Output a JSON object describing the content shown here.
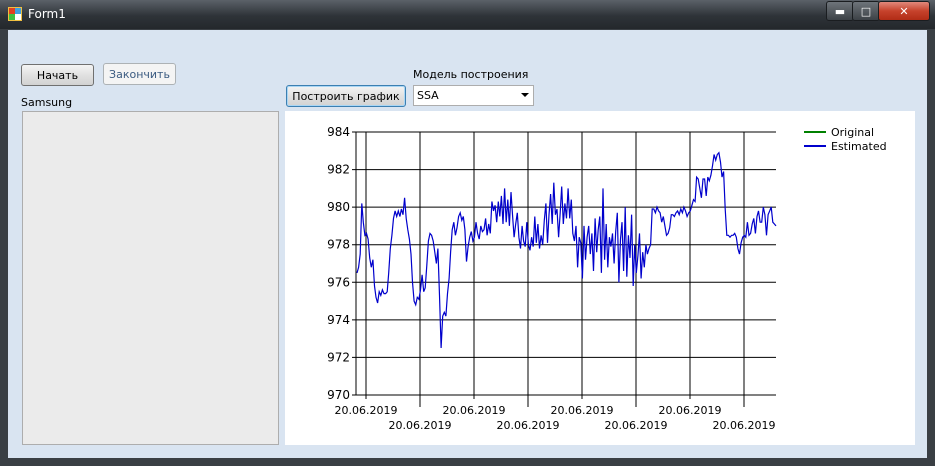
{
  "window": {
    "title": "Form1"
  },
  "controls": {
    "start_button": "Начать",
    "stop_button": "Закончить",
    "list_label": "Samsung",
    "build_button": "Построить график",
    "model_label": "Модель построения",
    "model_value": "SSA"
  },
  "chart_data": {
    "type": "line",
    "title": "",
    "xlabel": "",
    "ylabel": "",
    "ylim": [
      970,
      984
    ],
    "yticks": [
      970,
      972,
      974,
      976,
      978,
      980,
      982,
      984
    ],
    "xtick_labels": [
      "20.06.2019",
      "20.06.2019",
      "20.06.2019",
      "20.06.2019",
      "20.06.2019",
      "20.06.2019",
      "20.06.2019",
      "20.06.2019"
    ],
    "grid": true,
    "legend_position": "top-right",
    "colors": {
      "Original": "#008000",
      "Estimated": "#0000cc"
    },
    "series": [
      {
        "name": "Original",
        "values": []
      },
      {
        "name": "Estimated",
        "values": [
          976.5,
          976.8,
          977.5,
          980.2,
          979.2,
          978.5,
          978.6,
          978.3,
          977.3,
          976.8,
          977.2,
          975.8,
          975.2,
          974.9,
          975.5,
          975.3,
          975.6,
          975.4,
          975.4,
          975.5,
          976.5,
          977.8,
          978.5,
          979.4,
          979.8,
          979.5,
          979.8,
          979.5,
          979.9,
          979.6,
          980.5,
          979.4,
          978.8,
          978.3,
          977.5,
          976.0,
          975.0,
          974.8,
          975.2,
          975.1,
          975.6,
          976.4,
          975.5,
          975.7,
          976.9,
          978.2,
          978.6,
          978.5,
          978.2,
          977.6,
          977.0,
          977.8,
          975.3,
          972.5,
          974.2,
          974.4,
          974.2,
          975.4,
          976.2,
          977.6,
          978.8,
          979.2,
          978.5,
          978.9,
          979.5,
          979.7,
          979.3,
          979.5,
          978.8,
          977.1,
          977.9,
          978.4,
          978.7,
          978.2,
          978.4,
          979.2,
          978.6,
          978.3,
          979.0,
          978.7,
          978.8,
          979.4,
          978.5,
          979.1,
          978.6,
          980.3,
          979.8,
          980.1,
          979.2,
          980.3,
          979.5,
          980.6,
          979.1,
          981.0,
          979.2,
          980.4,
          979.0,
          980.8,
          979.6,
          978.4,
          979.1,
          979.7,
          978.4,
          977.8,
          979.0,
          978.2,
          977.9,
          979.2,
          978.0,
          977.7,
          978.4,
          977.9,
          979.5,
          978.1,
          979.1,
          977.8,
          978.5,
          978.0,
          979.3,
          980.2,
          978.1,
          979.6,
          980.7,
          979.1,
          981.3,
          979.6,
          979.9,
          978.4,
          979.7,
          981.1,
          979.1,
          980.2,
          979.4,
          981.0,
          979.4,
          980.4,
          978.6,
          978.2,
          979.0,
          976.8,
          978.4,
          978.1,
          976.2,
          979.0,
          977.2,
          978.4,
          979.0,
          977.5,
          978.6,
          976.6,
          979.4,
          977.6,
          978.8,
          979.5,
          976.5,
          981.0,
          977.2,
          979.1,
          976.8,
          978.4,
          977.9,
          978.6,
          977.0,
          978.7,
          979.7,
          976.0,
          978.3,
          979.2,
          976.6,
          980.0,
          976.3,
          978.5,
          977.3,
          979.6,
          975.8,
          978.0,
          976.5,
          977.4,
          978.6,
          976.2,
          977.6,
          976.8,
          978.0,
          977.5,
          977.8,
          978.0,
          979.9,
          979.9,
          979.7,
          980.0,
          979.8,
          979.7,
          979.2,
          979.5,
          979.0,
          978.5,
          978.6,
          978.9,
          979.6,
          979.6,
          979.5,
          979.7,
          979.8,
          979.6,
          979.9,
          979.7,
          980.0,
          979.8,
          979.5,
          979.7,
          979.8,
          980.1,
          980.4,
          980.3,
          981.6,
          981.5,
          981.0,
          980.5,
          981.5,
          981.5,
          980.6,
          981.6,
          981.4,
          981.7,
          982.2,
          982.8,
          982.5,
          982.8,
          982.9,
          982.4,
          981.6,
          981.9,
          979.9,
          978.5,
          978.5,
          978.4,
          978.5,
          978.5,
          978.6,
          978.4,
          977.8,
          977.5,
          978.1,
          978.4,
          978.5,
          978.4,
          979.2,
          978.5,
          978.6,
          979.1,
          979.4,
          978.6,
          979.5,
          979.8,
          979.2,
          979.2,
          980.0,
          979.6,
          978.5,
          979.6,
          979.8,
          980.0,
          979.2,
          979.1,
          979.0
        ]
      }
    ]
  }
}
